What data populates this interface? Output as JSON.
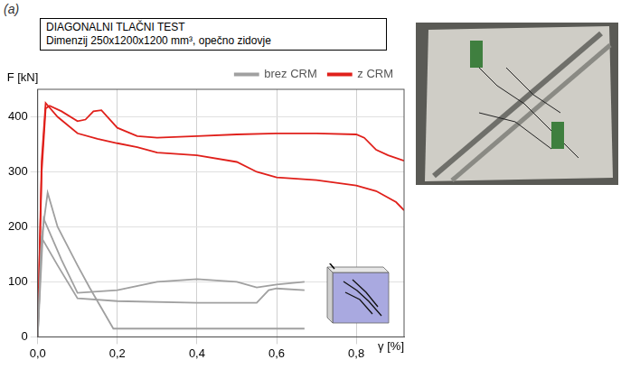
{
  "chart_data": {
    "type": "line",
    "panel_label": "(a)",
    "title": "DIAGONALNI TLAČNI TEST",
    "subtitle": "Dimenzij 250x1200x1200 mm³, opečno zidovje",
    "x_label": "γ [%]",
    "y_label": "F [kN]",
    "xlim": [
      0,
      0.92
    ],
    "xticks": [
      {
        "value": 0,
        "label": "0,0"
      },
      {
        "value": 0.2,
        "label": "0,2"
      },
      {
        "value": 0.4,
        "label": "0,4"
      },
      {
        "value": 0.6,
        "label": "0,6"
      },
      {
        "value": 0.8,
        "label": "0,8"
      }
    ],
    "ylim": [
      0,
      450
    ],
    "yticks": [
      0,
      100,
      200,
      300,
      400
    ],
    "grid": true,
    "legend": "upper right",
    "series": [
      {
        "name": "brez CRM",
        "color": "#a0a0a0",
        "x": [
          0,
          0.01,
          0.025,
          0.05,
          0.1,
          0.13,
          0.19,
          0.3,
          0.4,
          0.5,
          0.67
        ],
        "values": [
          0,
          180,
          262,
          200,
          130,
          90,
          15,
          15,
          15,
          15,
          15
        ]
      },
      {
        "name": "brez CRM",
        "color": "#a0a0a0",
        "x": [
          0,
          0.015,
          0.06,
          0.1,
          0.2,
          0.3,
          0.4,
          0.5,
          0.55,
          0.6,
          0.67
        ],
        "values": [
          0,
          215,
          140,
          80,
          85,
          100,
          105,
          100,
          90,
          95,
          100
        ]
      },
      {
        "name": "brez CRM",
        "color": "#a0a0a0",
        "x": [
          0,
          0.01,
          0.05,
          0.1,
          0.2,
          0.4,
          0.55,
          0.58,
          0.6,
          0.67
        ],
        "values": [
          0,
          180,
          130,
          70,
          65,
          62,
          62,
          85,
          88,
          85
        ]
      },
      {
        "name": "z CRM",
        "color": "#e0201b",
        "x": [
          0,
          0.01,
          0.02,
          0.03,
          0.06,
          0.1,
          0.12,
          0.14,
          0.16,
          0.2,
          0.25,
          0.3,
          0.4,
          0.5,
          0.6,
          0.7,
          0.8,
          0.82,
          0.85,
          0.88,
          0.92
        ],
        "values": [
          0,
          300,
          415,
          420,
          410,
          392,
          395,
          410,
          412,
          380,
          365,
          362,
          365,
          368,
          370,
          370,
          368,
          362,
          340,
          330,
          320
        ]
      },
      {
        "name": "z CRM",
        "color": "#e0201b",
        "x": [
          0,
          0.01,
          0.02,
          0.05,
          0.1,
          0.15,
          0.2,
          0.25,
          0.3,
          0.4,
          0.5,
          0.55,
          0.6,
          0.7,
          0.8,
          0.85,
          0.9,
          0.92
        ],
        "values": [
          0,
          320,
          425,
          400,
          370,
          360,
          352,
          345,
          335,
          330,
          318,
          300,
          290,
          285,
          275,
          265,
          245,
          230
        ]
      }
    ]
  }
}
